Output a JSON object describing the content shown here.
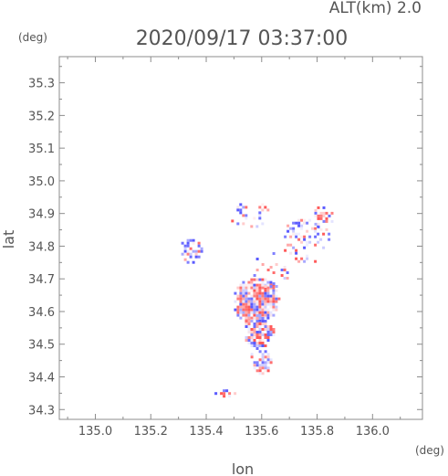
{
  "header": {
    "alt_label": "ALT(km) 2.0",
    "datetime": "2020/09/17 03:37:00",
    "y_unit": "(deg)",
    "x_unit": "(deg)"
  },
  "colors": {
    "axis": "#8c8c8c",
    "text": "#555555",
    "positive": "#ff4a4a",
    "negative": "#4a4aff"
  },
  "chart_data": {
    "type": "heatmap",
    "title": "2020/09/17 03:37:00",
    "subtitle": "ALT(km) 2.0",
    "xlabel": "lon",
    "ylabel": "lat",
    "x_unit": "(deg)",
    "y_unit": "(deg)",
    "xlim": [
      134.87,
      136.18
    ],
    "ylim": [
      34.27,
      35.38
    ],
    "x_ticks": [
      135.0,
      135.2,
      135.4,
      135.6,
      135.8,
      136.0
    ],
    "x_tick_labels": [
      "135.0",
      "135.2",
      "135.4",
      "135.6",
      "135.8",
      "136.0"
    ],
    "y_ticks": [
      34.3,
      34.4,
      34.5,
      34.6,
      34.7,
      34.8,
      34.9,
      35.0,
      35.1,
      35.2,
      35.3
    ],
    "y_tick_labels": [
      "34.3",
      "34.4",
      "34.5",
      "34.6",
      "34.7",
      "34.8",
      "34.9",
      "35.0",
      "35.1",
      "35.2",
      "35.3"
    ],
    "grid": false,
    "colormap": "diverging red-white-blue (red positive, blue negative)",
    "echo_regions": [
      {
        "lon": [
          135.49,
          135.66
        ],
        "lat": [
          34.56,
          34.71
        ],
        "mix": "red-dominant",
        "density": 0.88
      },
      {
        "lon": [
          135.53,
          135.64
        ],
        "lat": [
          34.49,
          34.6
        ],
        "mix": "mixed",
        "density": 0.8
      },
      {
        "lon": [
          135.55,
          135.63
        ],
        "lat": [
          34.41,
          34.49
        ],
        "mix": "mixed",
        "density": 0.7
      },
      {
        "lon": [
          135.3,
          135.38
        ],
        "lat": [
          34.75,
          34.83
        ],
        "mix": "blue-dominant",
        "density": 0.55
      },
      {
        "lon": [
          135.67,
          135.84
        ],
        "lat": [
          34.75,
          34.9
        ],
        "mix": "mixed",
        "density": 0.3
      },
      {
        "lon": [
          135.78,
          135.86
        ],
        "lat": [
          34.85,
          34.93
        ],
        "mix": "red-dominant",
        "density": 0.4
      },
      {
        "lon": [
          135.48,
          135.63
        ],
        "lat": [
          34.86,
          34.94
        ],
        "mix": "mixed",
        "density": 0.18
      },
      {
        "lon": [
          135.56,
          135.72
        ],
        "lat": [
          34.67,
          34.79
        ],
        "mix": "mixed",
        "density": 0.14
      },
      {
        "lon": [
          135.42,
          135.5
        ],
        "lat": [
          34.34,
          34.37
        ],
        "mix": "mixed",
        "density": 0.35
      }
    ]
  }
}
